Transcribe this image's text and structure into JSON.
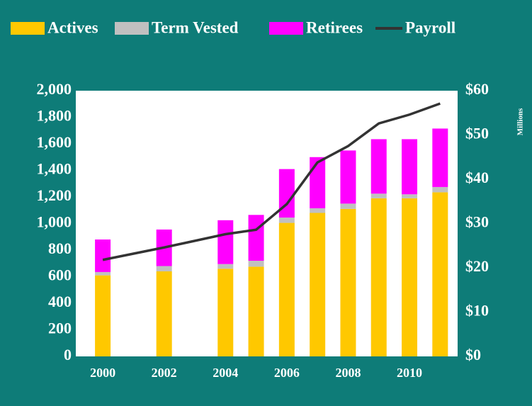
{
  "chart_data": {
    "type": "bar",
    "stacked": true,
    "x": [
      2000,
      2002,
      2004,
      2005,
      2006,
      2007,
      2008,
      2009,
      2010,
      2011
    ],
    "xlim": [
      1999.12,
      2011.57
    ],
    "xticks": [
      2000,
      2002,
      2004,
      2006,
      2008,
      2010
    ],
    "series": [
      {
        "name": "Actives",
        "color": "#ffc800",
        "values": [
          610,
          640,
          660,
          675,
          1005,
          1080,
          1110,
          1190,
          1190,
          1235
        ]
      },
      {
        "name": "Term Vested",
        "color": "#c0c0c0",
        "values": [
          25,
          40,
          35,
          45,
          40,
          35,
          40,
          35,
          30,
          40
        ]
      },
      {
        "name": "Retirees",
        "color": "#ff00ff",
        "values": [
          245,
          275,
          330,
          345,
          365,
          385,
          400,
          410,
          415,
          440
        ]
      },
      {
        "name": "Payroll",
        "color": "#333333",
        "type": "line",
        "axis": "y2",
        "values": [
          21.8,
          24.6,
          27.6,
          28.6,
          34.4,
          43.8,
          47.5,
          52.6,
          54.6,
          57.1
        ]
      }
    ],
    "ylim": [
      0,
      2000
    ],
    "yticks": [
      0,
      200,
      400,
      600,
      800,
      {
        "value": 1000,
        "label": "1,000"
      },
      {
        "value": 1200,
        "label": "1,200"
      },
      {
        "value": 1400,
        "label": "1,400"
      },
      {
        "value": 1600,
        "label": "1,600"
      },
      {
        "value": 1800,
        "label": "1,800"
      },
      {
        "value": 2000,
        "label": "2,000"
      }
    ],
    "y2lim": [
      0,
      60
    ],
    "y2ticks": [
      {
        "value": 0,
        "label": "$0"
      },
      {
        "value": 10,
        "label": "$10"
      },
      {
        "value": 20,
        "label": "$20"
      },
      {
        "value": 30,
        "label": "$30"
      },
      {
        "value": 40,
        "label": "$40"
      },
      {
        "value": 50,
        "label": "$50"
      },
      {
        "value": 60,
        "label": "$60"
      }
    ],
    "y2label": "Millions",
    "grid": false
  }
}
